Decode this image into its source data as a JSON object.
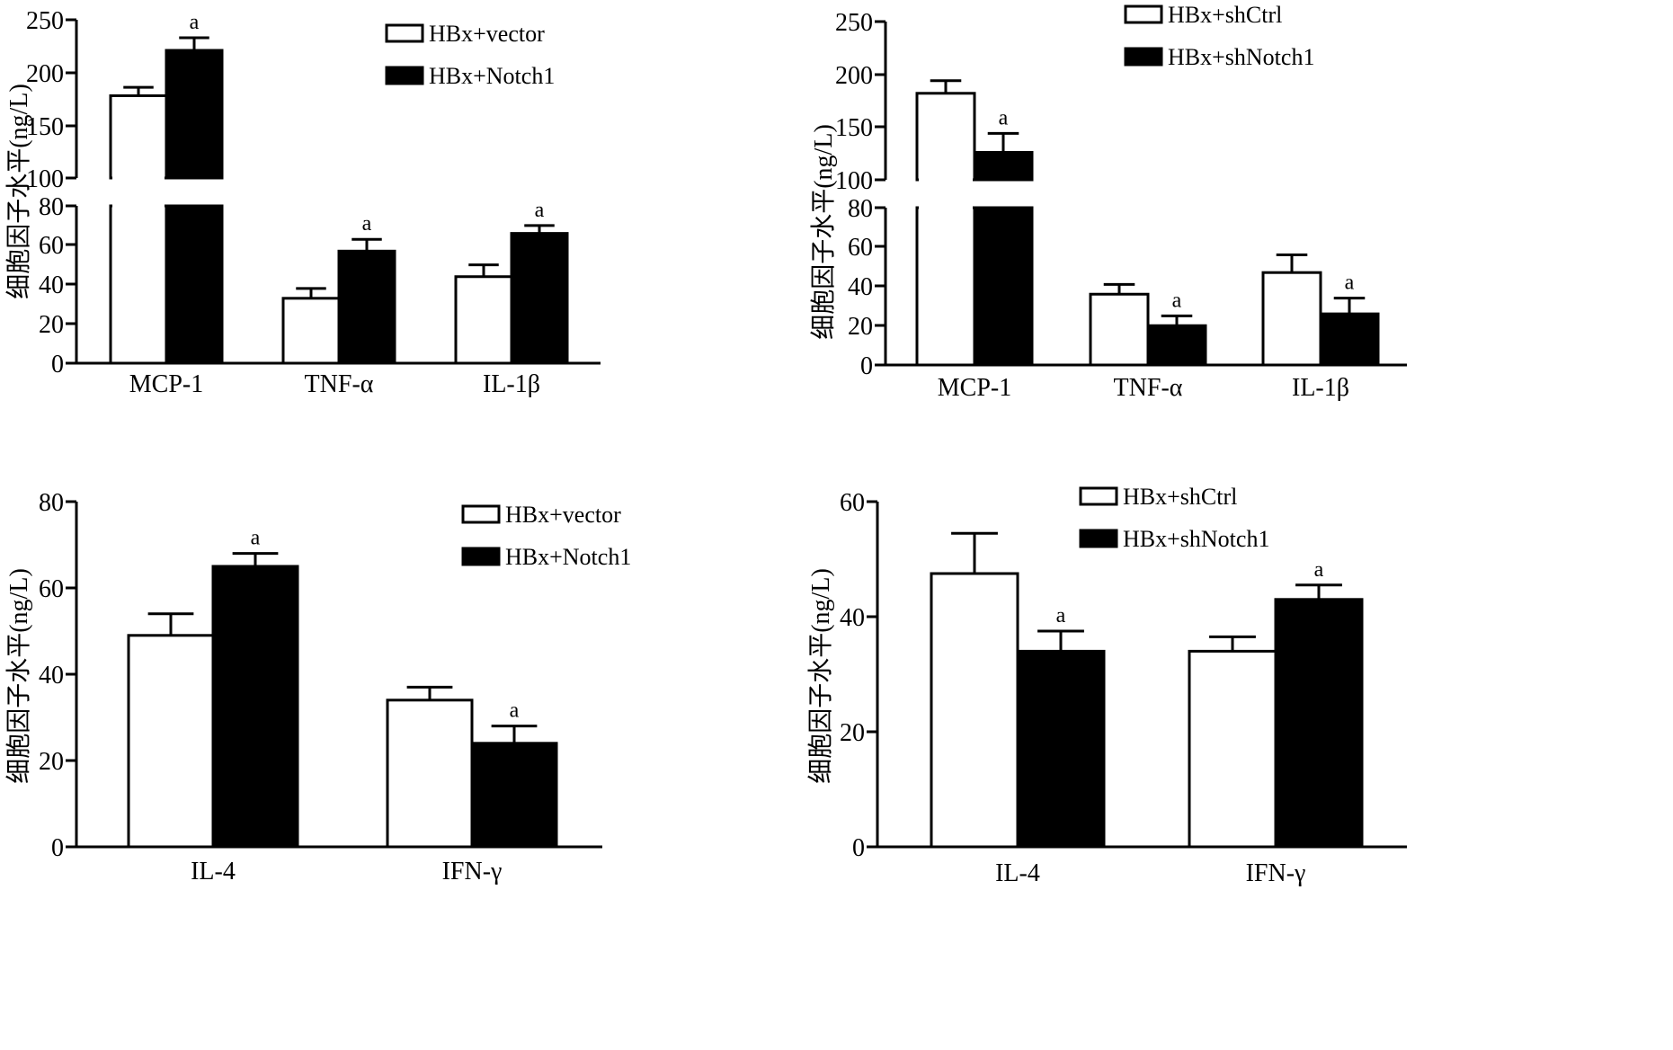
{
  "chart_data": [
    {
      "type": "bar",
      "panel": "top-left",
      "ylabel": "细胞因子水平(ng/L)",
      "broken_axis": true,
      "upper_ticks": [
        "100",
        "150",
        "200",
        "250"
      ],
      "lower_ticks": [
        "0",
        "20",
        "40",
        "60",
        "80"
      ],
      "categories": [
        "MCP-1",
        "TNF-α",
        "IL-1β"
      ],
      "series": [
        {
          "name": "HBx+vector",
          "fill": "#ffffff",
          "values": [
            178,
            33,
            44
          ],
          "errors": [
            8,
            5,
            6
          ]
        },
        {
          "name": "HBx+Notch1",
          "fill": "#000000",
          "values": [
            221,
            57,
            66
          ],
          "errors": [
            12,
            6,
            4
          ]
        }
      ],
      "significance": [
        {
          "series": 1,
          "category": 0,
          "label": "a"
        },
        {
          "series": 1,
          "category": 1,
          "label": "a"
        },
        {
          "series": 1,
          "category": 2,
          "label": "a"
        }
      ],
      "legend_position": "top-right"
    },
    {
      "type": "bar",
      "panel": "top-right",
      "ylabel": "细胞因子水平(ng/L)",
      "broken_axis": true,
      "upper_ticks": [
        "100",
        "150",
        "200",
        "250"
      ],
      "lower_ticks": [
        "0",
        "20",
        "40",
        "60",
        "80"
      ],
      "categories": [
        "MCP-1",
        "TNF-α",
        "IL-1β"
      ],
      "series": [
        {
          "name": "HBx+shCtrl",
          "fill": "#ffffff",
          "values": [
            182,
            36,
            47
          ],
          "errors": [
            12,
            5,
            9
          ]
        },
        {
          "name": "HBx+shNotch1",
          "fill": "#000000",
          "values": [
            126,
            20,
            26
          ],
          "errors": [
            18,
            5,
            8
          ]
        }
      ],
      "significance": [
        {
          "series": 1,
          "category": 0,
          "label": "a"
        },
        {
          "series": 1,
          "category": 1,
          "label": "a"
        },
        {
          "series": 1,
          "category": 2,
          "label": "a"
        }
      ],
      "legend_position": "top-right"
    },
    {
      "type": "bar",
      "panel": "bottom-left",
      "ylabel": "细胞因子水平(ng/L)",
      "broken_axis": false,
      "ylim": [
        0,
        80
      ],
      "ticks": [
        "0",
        "20",
        "40",
        "60",
        "80"
      ],
      "categories": [
        "IL-4",
        "IFN-γ"
      ],
      "series": [
        {
          "name": "HBx+vector",
          "fill": "#ffffff",
          "values": [
            49,
            34
          ],
          "errors": [
            5,
            3
          ]
        },
        {
          "name": "HBx+Notch1",
          "fill": "#000000",
          "values": [
            65,
            24
          ],
          "errors": [
            3,
            4
          ]
        }
      ],
      "significance": [
        {
          "series": 1,
          "category": 0,
          "label": "a"
        },
        {
          "series": 1,
          "category": 1,
          "label": "a"
        }
      ],
      "legend_position": "top-right"
    },
    {
      "type": "bar",
      "panel": "bottom-right",
      "ylabel": "细胞因子水平(ng/L)",
      "broken_axis": false,
      "ylim": [
        0,
        60
      ],
      "ticks": [
        "0",
        "20",
        "40",
        "60"
      ],
      "categories": [
        "IL-4",
        "IFN-γ"
      ],
      "series": [
        {
          "name": "HBx+shCtrl",
          "fill": "#ffffff",
          "values": [
            47.5,
            34
          ],
          "errors": [
            7,
            2.5
          ]
        },
        {
          "name": "HBx+shNotch1",
          "fill": "#000000",
          "values": [
            34,
            43
          ],
          "errors": [
            3.5,
            2.5
          ]
        }
      ],
      "significance": [
        {
          "series": 1,
          "category": 0,
          "label": "a"
        },
        {
          "series": 1,
          "category": 1,
          "label": "a"
        }
      ],
      "legend_position": "top-right"
    }
  ]
}
